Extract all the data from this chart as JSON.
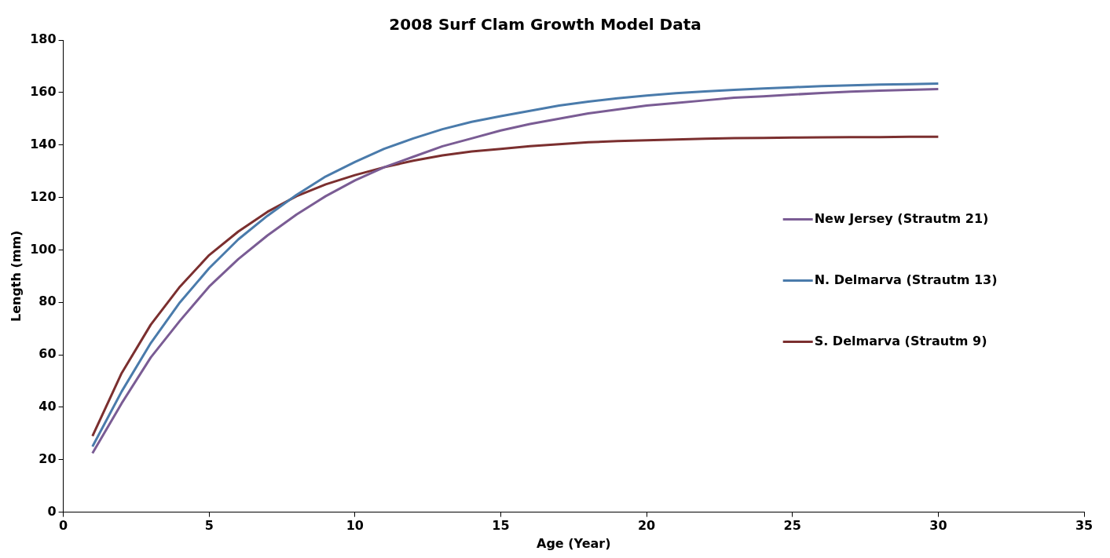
{
  "chart_data": {
    "type": "line",
    "title": "2008 Surf Clam Growth Model Data",
    "xlabel": "Age (Year)",
    "ylabel": "Length (mm)",
    "x": [
      1,
      2,
      3,
      4,
      5,
      6,
      7,
      8,
      9,
      10,
      11,
      12,
      13,
      14,
      15,
      16,
      17,
      18,
      19,
      20,
      21,
      22,
      23,
      24,
      25,
      26,
      27,
      28,
      29,
      30
    ],
    "series": [
      {
        "name": "New Jersey (Strautm 21)",
        "color": "#7a5c94",
        "values": [
          22.5,
          41.5,
          59,
          73,
          86,
          96.5,
          105.5,
          113.5,
          120.5,
          126.5,
          131.5,
          135.5,
          139.5,
          142.5,
          145.5,
          148,
          150,
          152,
          153.5,
          155,
          156,
          157,
          158,
          158.5,
          159.2,
          159.8,
          160.3,
          160.7,
          161,
          161.3
        ]
      },
      {
        "name": "N. Delmarva (Strautm 13)",
        "color": "#4a7bab",
        "values": [
          25,
          46,
          64.5,
          80,
          93,
          104,
          113,
          121,
          128,
          133.5,
          138.5,
          142.5,
          146,
          148.8,
          151,
          153,
          155,
          156.5,
          157.8,
          158.8,
          159.7,
          160.4,
          161,
          161.5,
          162,
          162.4,
          162.7,
          163,
          163.2,
          163.4
        ]
      },
      {
        "name": "S. Delmarva (Strautm 9)",
        "color": "#7b2f2f",
        "values": [
          29,
          53,
          71.5,
          86,
          98,
          107,
          114.5,
          120.5,
          125,
          128.5,
          131.5,
          134,
          136,
          137.5,
          138.5,
          139.5,
          140.3,
          141,
          141.5,
          141.8,
          142.1,
          142.4,
          142.6,
          142.7,
          142.8,
          142.9,
          143,
          143,
          143.1,
          143.1
        ]
      }
    ],
    "xlim": [
      0,
      35
    ],
    "xticks": [
      0,
      5,
      10,
      15,
      20,
      25,
      30,
      35
    ],
    "ylim": [
      0,
      180
    ],
    "yticks": [
      0,
      20,
      40,
      60,
      80,
      100,
      120,
      140,
      160,
      180
    ],
    "grid": false,
    "legend": "right",
    "marker": "none",
    "line_style": "solid"
  }
}
